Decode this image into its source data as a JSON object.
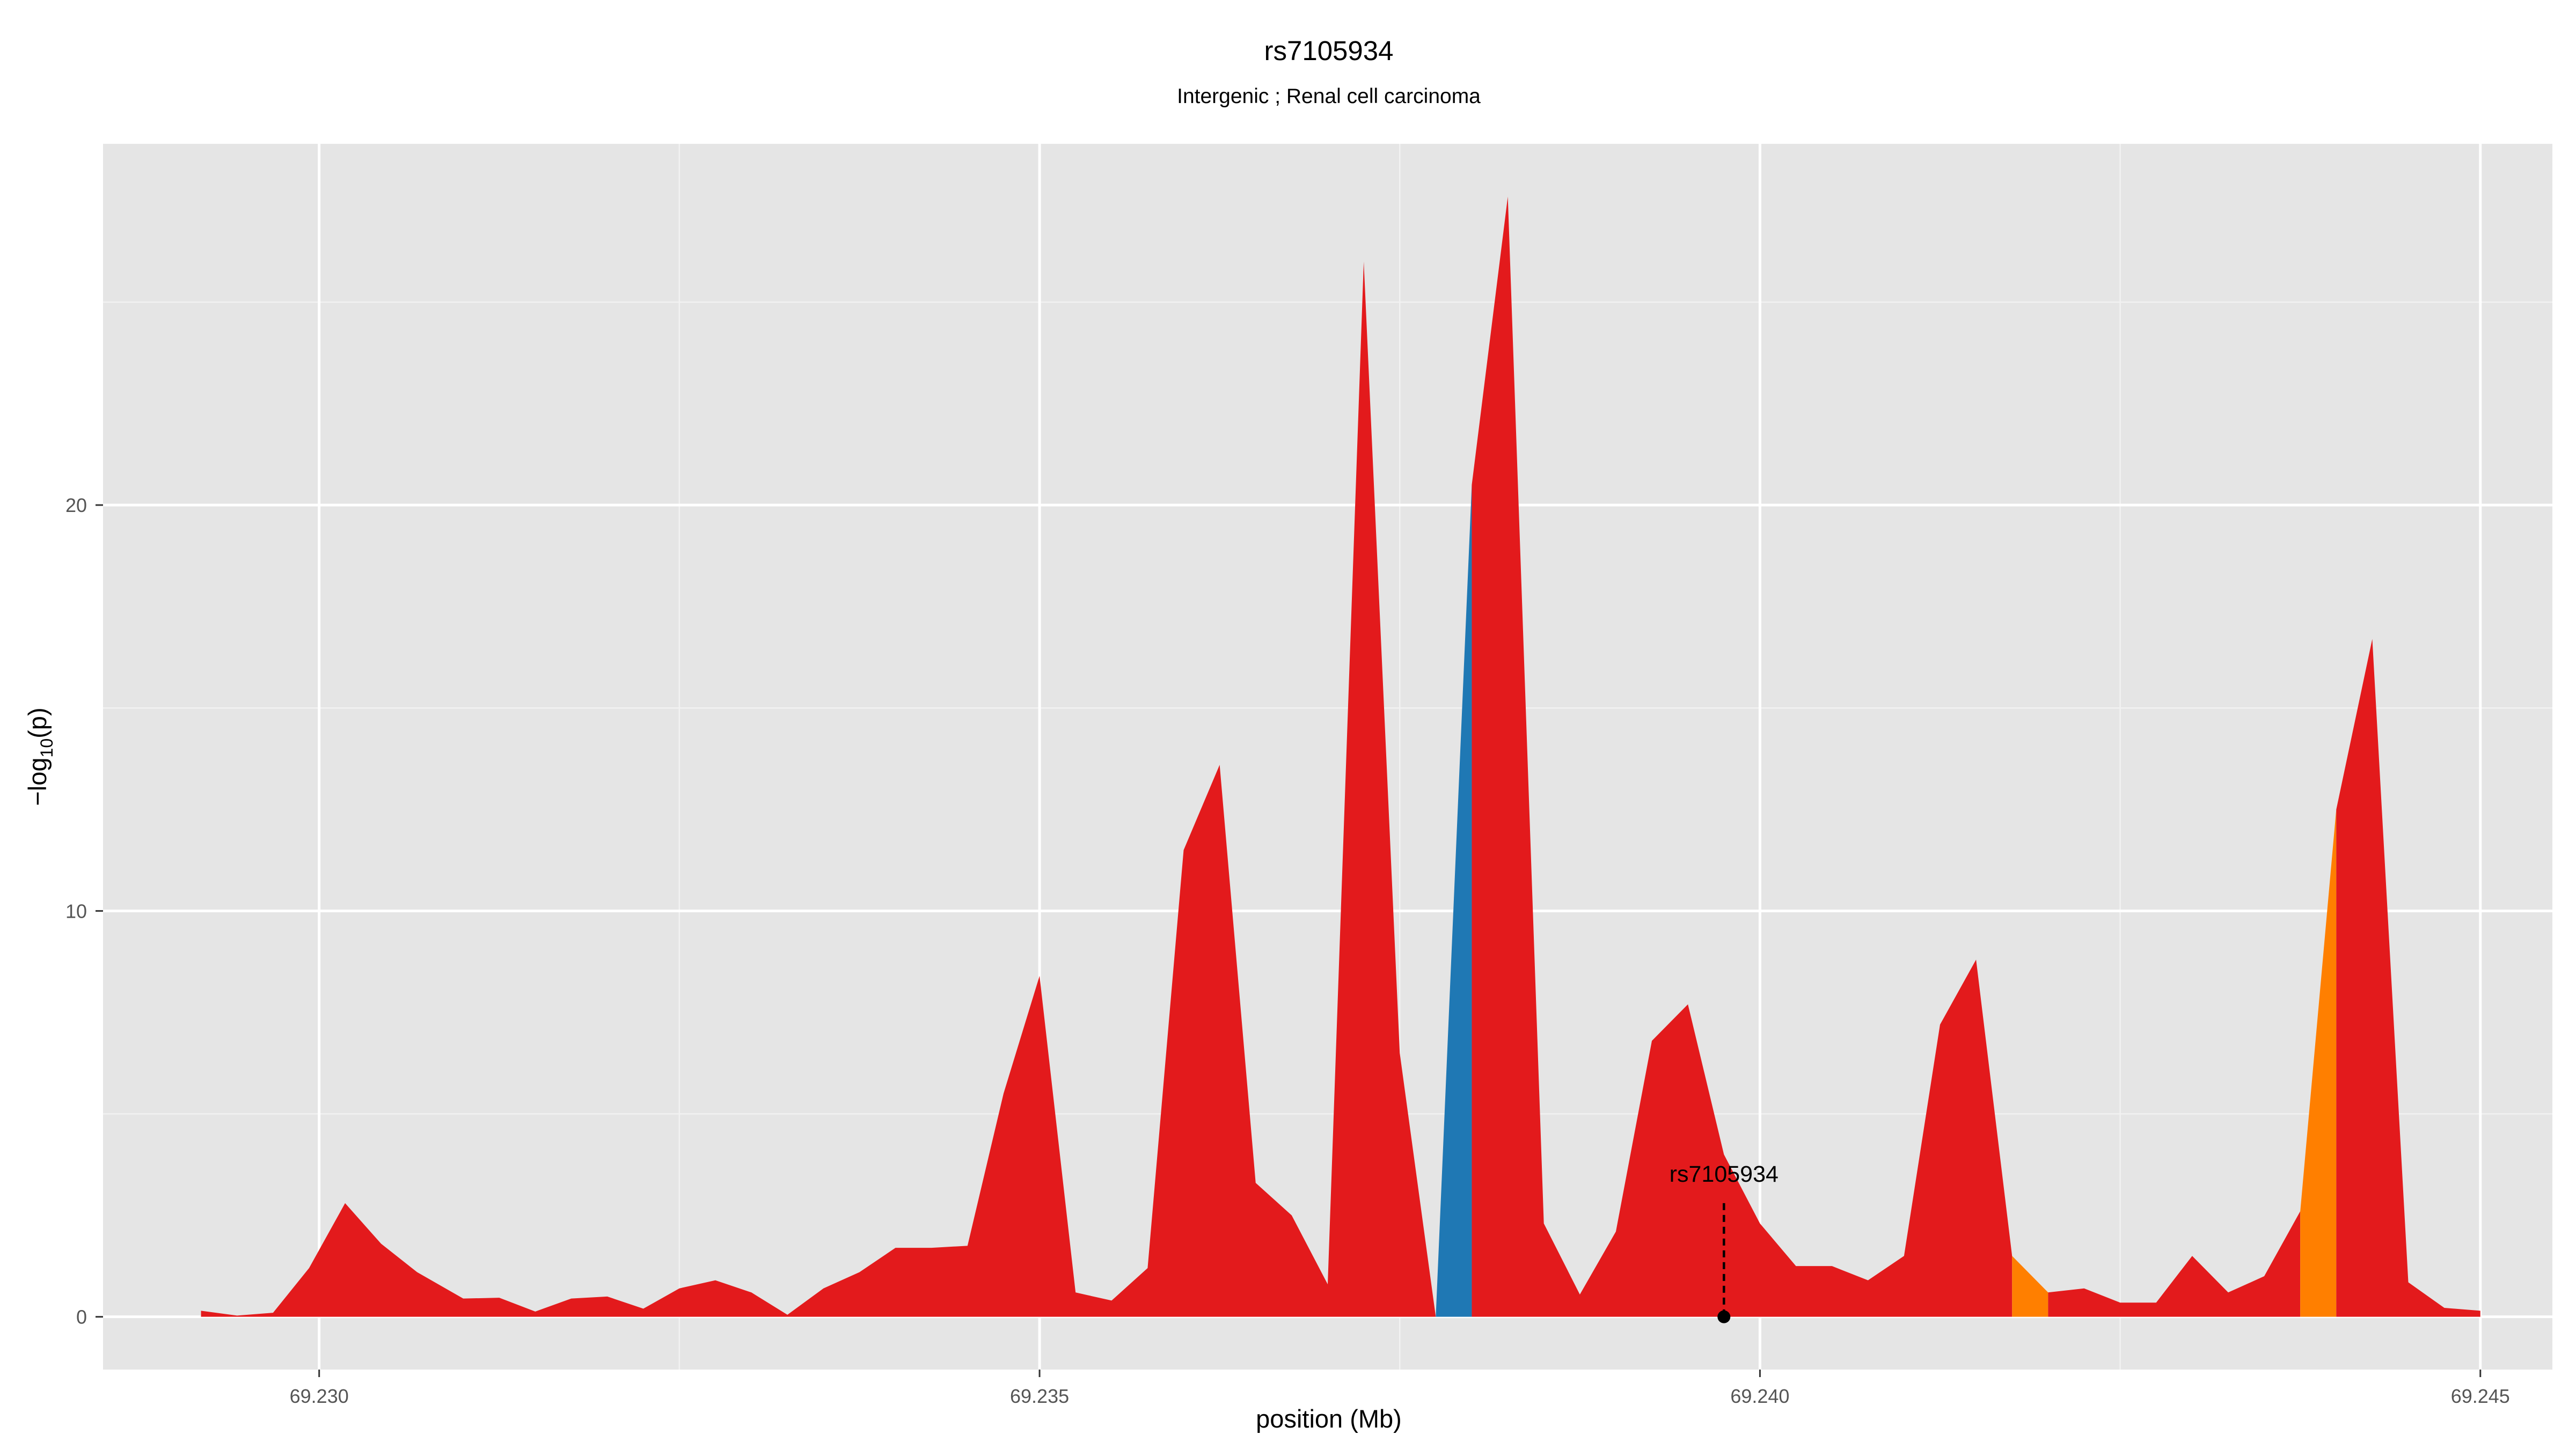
{
  "chart_data": {
    "type": "area",
    "title": "rs7105934",
    "subtitle": "Intergenic ; Renal cell carcinoma",
    "xlabel": "position (Mb)",
    "ylabel": "-log10(p)",
    "ylabel_parts": [
      "−log",
      "10",
      "(p)"
    ],
    "xlim": [
      69.2285,
      69.2455
    ],
    "ylim": [
      -1.3,
      28.9
    ],
    "x_ticks": [
      69.23,
      69.235,
      69.24,
      69.245
    ],
    "x_tick_labels": [
      "69.230",
      "69.235",
      "69.240",
      "69.245"
    ],
    "y_ticks": [
      0,
      10,
      20
    ],
    "y_tick_labels": [
      "0",
      "10",
      "20"
    ],
    "grid": true,
    "background": "#e5e5e5",
    "colors": {
      "red": "#e31a1c",
      "blue": "#1f78b4",
      "orange": "#ff7f00"
    },
    "segments": [
      {
        "color": "red",
        "points": [
          [
            69.22918,
            0.15
          ],
          [
            69.22943,
            0.03
          ],
          [
            69.22968,
            0.1
          ],
          [
            69.22993,
            1.2
          ],
          [
            69.23018,
            2.8
          ],
          [
            69.23043,
            1.8
          ],
          [
            69.23068,
            1.1
          ],
          [
            69.231,
            0.45
          ],
          [
            69.23125,
            0.47
          ],
          [
            69.2315,
            0.13
          ],
          [
            69.23175,
            0.45
          ],
          [
            69.232,
            0.5
          ],
          [
            69.23225,
            0.2
          ],
          [
            69.2325,
            0.7
          ],
          [
            69.23275,
            0.9
          ],
          [
            69.233,
            0.6
          ],
          [
            69.23325,
            0.05
          ],
          [
            69.2335,
            0.7
          ],
          [
            69.23375,
            1.1
          ],
          [
            69.234,
            1.7
          ],
          [
            69.23425,
            1.7
          ],
          [
            69.2345,
            1.75
          ],
          [
            69.23475,
            5.5
          ],
          [
            69.235,
            8.4
          ],
          [
            69.23525,
            0.6
          ],
          [
            69.2355,
            0.4
          ],
          [
            69.23575,
            1.2
          ],
          [
            69.236,
            11.5
          ],
          [
            69.23625,
            13.6
          ],
          [
            69.2365,
            3.3
          ],
          [
            69.23675,
            2.5
          ],
          [
            69.237,
            0.8
          ],
          [
            69.23725,
            26.0
          ],
          [
            69.2375,
            6.5
          ],
          [
            69.23775,
            0.0
          ]
        ]
      },
      {
        "color": "blue",
        "points": [
          [
            69.23775,
            0.0
          ],
          [
            69.238,
            20.5
          ]
        ]
      },
      {
        "color": "red",
        "points": [
          [
            69.238,
            20.5
          ],
          [
            69.23825,
            27.6
          ],
          [
            69.2385,
            2.3
          ],
          [
            69.23875,
            0.55
          ],
          [
            69.239,
            2.1
          ],
          [
            69.23925,
            6.8
          ],
          [
            69.2395,
            7.7
          ],
          [
            69.23975,
            4.0
          ],
          [
            69.24,
            2.3
          ],
          [
            69.24025,
            1.25
          ],
          [
            69.2405,
            1.25
          ],
          [
            69.24075,
            0.9
          ],
          [
            69.241,
            1.5
          ],
          [
            69.24125,
            7.2
          ],
          [
            69.2415,
            8.8
          ],
          [
            69.24175,
            1.5
          ]
        ]
      },
      {
        "color": "orange",
        "points": [
          [
            69.24175,
            1.5
          ],
          [
            69.242,
            0.6
          ]
        ]
      },
      {
        "color": "red",
        "points": [
          [
            69.242,
            0.6
          ],
          [
            69.24225,
            0.7
          ],
          [
            69.2425,
            0.35
          ],
          [
            69.24275,
            0.35
          ],
          [
            69.243,
            1.5
          ],
          [
            69.24325,
            0.6
          ],
          [
            69.2435,
            1.0
          ],
          [
            69.24375,
            2.6
          ]
        ]
      },
      {
        "color": "orange",
        "points": [
          [
            69.24375,
            2.6
          ],
          [
            69.244,
            12.5
          ]
        ]
      },
      {
        "color": "red",
        "points": [
          [
            69.244,
            12.5
          ],
          [
            69.24425,
            16.7
          ],
          [
            69.2445,
            0.85
          ],
          [
            69.24475,
            0.22
          ],
          [
            69.245,
            0.15
          ]
        ]
      }
    ],
    "annotation": {
      "label": "rs7105934",
      "x": 69.23975,
      "y_point": 0.0,
      "y_line_top": 2.8
    }
  }
}
